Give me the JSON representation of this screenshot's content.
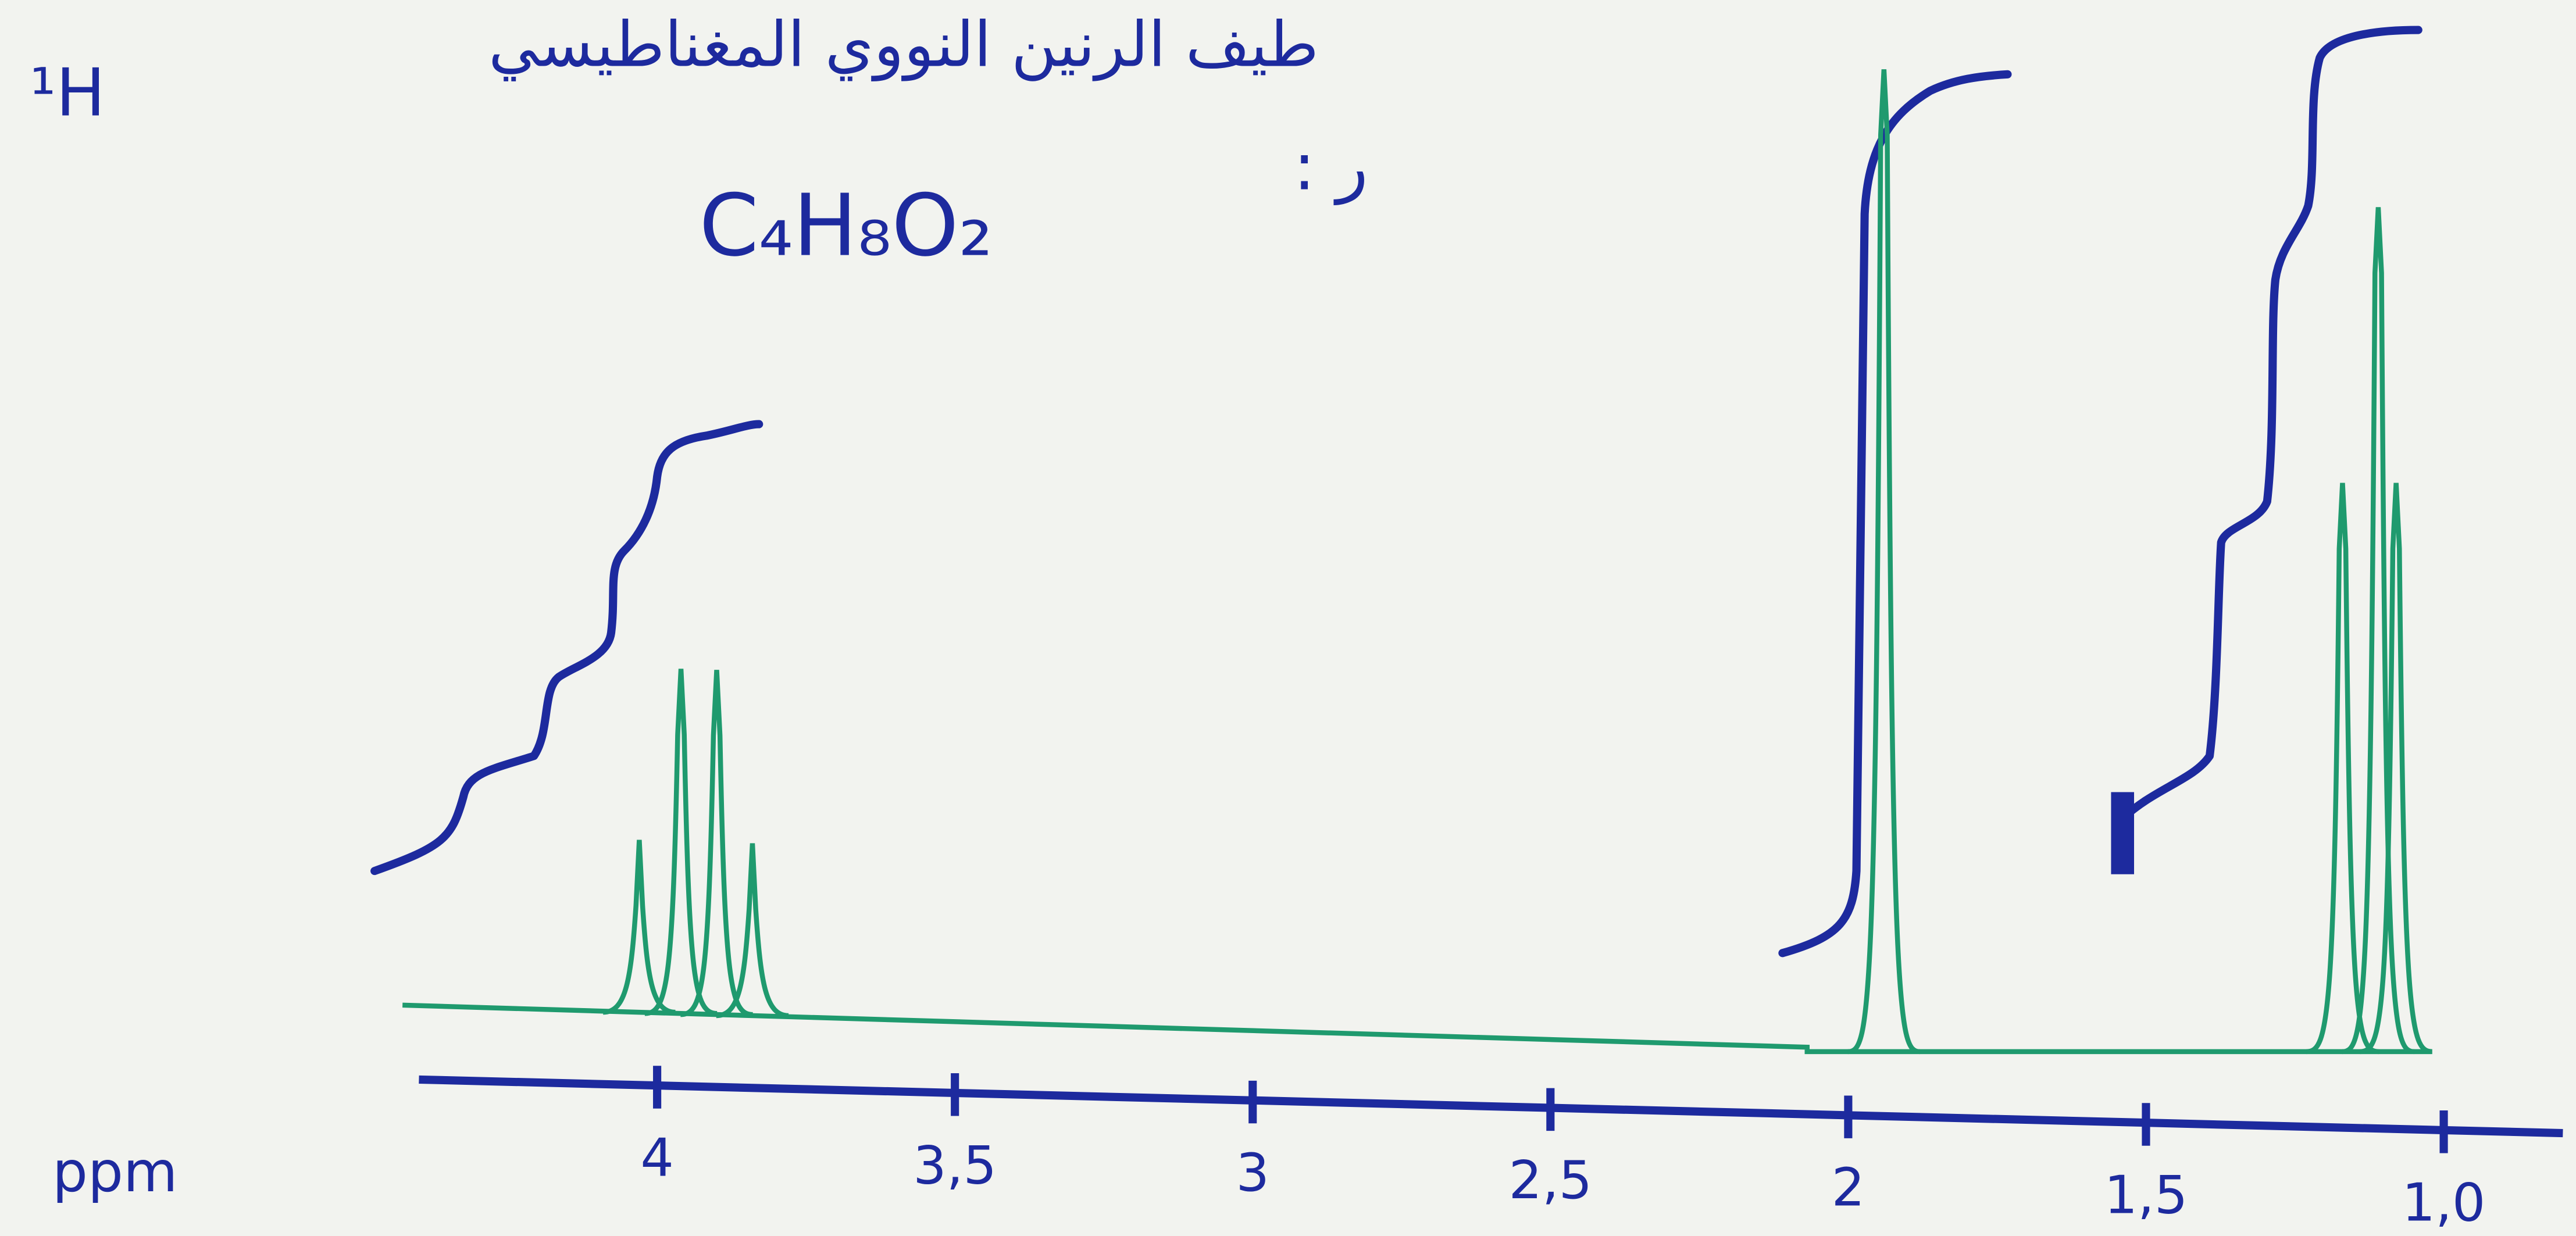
{
  "chart_data": {
    "type": "nmr",
    "title": "طيف الرنين النووي المغناطيسي",
    "nucleus": "¹H",
    "formula": "C₄H₈O₂",
    "annotation": "ر :",
    "x_label": "ppm",
    "xlim": [
      4.4,
      0.8
    ],
    "xticks": [
      4,
      {
        "value": 3.5,
        "label": "3,5"
      },
      3,
      {
        "value": 2.5,
        "label": "2,5"
      },
      2,
      {
        "value": 1.5,
        "label": "1,5"
      },
      {
        "value": 1.0,
        "label": "1,0"
      }
    ],
    "ylim": [
      0,
      6
    ],
    "color": "#1f9a6e",
    "peaks": {
      "ppm": [
        4.03,
        3.96,
        3.9,
        3.84,
        1.94,
        1.17,
        1.11,
        1.08
      ],
      "intensity": [
        1.0,
        2.0,
        2.0,
        1.0,
        5.7,
        3.3,
        4.9,
        3.3
      ]
    }
  }
}
